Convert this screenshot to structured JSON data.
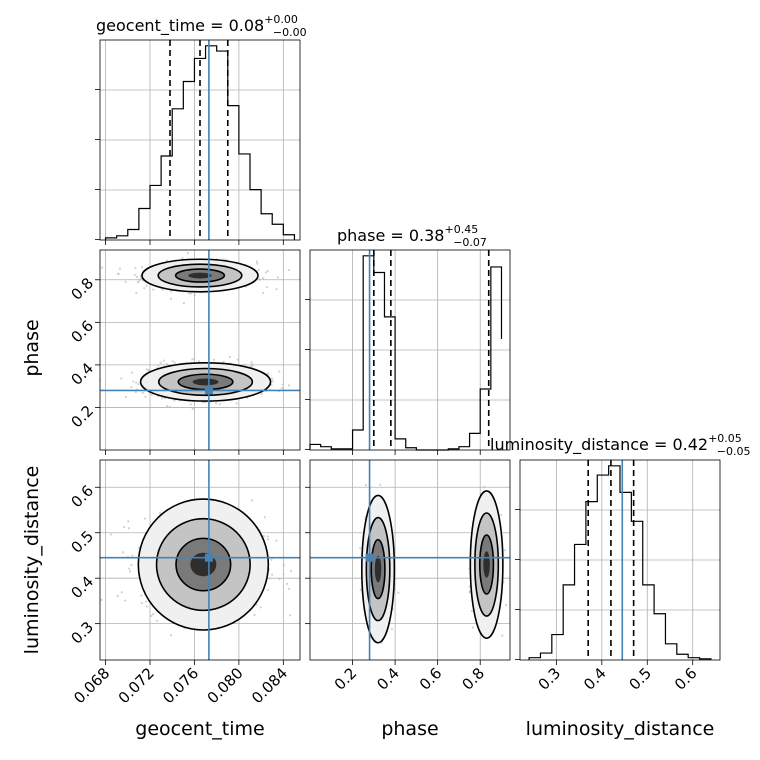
{
  "chart_data": {
    "type": "corner",
    "parameters": [
      "geocent_time",
      "phase",
      "luminosity_distance"
    ],
    "titles": {
      "geocent_time": {
        "name": "geocent_time",
        "median": "0.08",
        "plus": "+0.00",
        "minus": "−0.00"
      },
      "phase": {
        "name": "phase",
        "median": "0.38",
        "plus": "+0.45",
        "minus": "−0.07"
      },
      "luminosity_distance": {
        "name": "luminosity_distance",
        "median": "0.42",
        "plus": "+0.05",
        "minus": "−0.05"
      }
    },
    "axis_labels": {
      "x": [
        "geocent_time",
        "phase",
        "luminosity_distance"
      ],
      "y": [
        "phase",
        "luminosity_distance"
      ]
    },
    "ranges": {
      "geocent_time": [
        0.0675,
        0.0855
      ],
      "phase": [
        0.0,
        0.94
      ],
      "luminosity_distance": [
        0.22,
        0.66
      ]
    },
    "ticks": {
      "geocent_time": [
        "0.068",
        "0.072",
        "0.076",
        "0.080",
        "0.084"
      ],
      "phase": [
        "0.2",
        "0.4",
        "0.6",
        "0.8"
      ],
      "luminosity_distance": [
        "0.3",
        "0.4",
        "0.5",
        "0.6"
      ]
    },
    "truths": {
      "geocent_time": 0.0773,
      "phase": 0.28,
      "luminosity_distance": 0.445
    },
    "quantiles": {
      "geocent_time": [
        0.0738,
        0.0765,
        0.079
      ],
      "phase": [
        0.3,
        0.38,
        0.84
      ],
      "luminosity_distance": [
        0.37,
        0.42,
        0.47
      ]
    },
    "histograms": {
      "geocent_time": {
        "edges": [
          0.068,
          0.069,
          0.07,
          0.071,
          0.072,
          0.073,
          0.074,
          0.075,
          0.076,
          0.077,
          0.078,
          0.079,
          0.08,
          0.081,
          0.082,
          0.083,
          0.084,
          0.085
        ],
        "counts": [
          2,
          4,
          10,
          30,
          52,
          80,
          125,
          151,
          173,
          185,
          180,
          128,
          82,
          48,
          25,
          15,
          5
        ]
      },
      "phase": {
        "edges": [
          0.0,
          0.05,
          0.1,
          0.15,
          0.2,
          0.25,
          0.3,
          0.35,
          0.4,
          0.45,
          0.5,
          0.55,
          0.6,
          0.65,
          0.7,
          0.75,
          0.8,
          0.85,
          0.9
        ],
        "counts": [
          5,
          3,
          1,
          1,
          18,
          175,
          160,
          120,
          10,
          2,
          0,
          0,
          0,
          1,
          3,
          15,
          55,
          165,
          100
        ]
      },
      "luminosity_distance": {
        "edges": [
          0.24,
          0.265,
          0.29,
          0.315,
          0.34,
          0.365,
          0.39,
          0.415,
          0.44,
          0.465,
          0.49,
          0.515,
          0.54,
          0.565,
          0.59,
          0.615,
          0.64
        ],
        "counts": [
          2,
          6,
          22,
          65,
          100,
          137,
          160,
          168,
          145,
          120,
          65,
          40,
          14,
          5,
          2,
          1
        ]
      }
    },
    "clusters": {
      "geocent_time_vs_phase": [
        {
          "cx": 0.0765,
          "cy": 0.82,
          "sx": 0.0022,
          "sy": 0.028,
          "rx": 0.0058,
          "ry": 0.085
        },
        {
          "cx": 0.077,
          "cy": 0.32,
          "sx": 0.0022,
          "sy": 0.035,
          "rx": 0.0065,
          "ry": 0.1
        }
      ],
      "geocent_time_vs_luminosity_distance": [
        {
          "cx": 0.0768,
          "cy": 0.43,
          "sx": 0.0024,
          "sy": 0.045,
          "rx": 0.0065,
          "ry": 0.16
        }
      ],
      "phase_vs_luminosity_distance": [
        {
          "cx": 0.32,
          "cy": 0.42,
          "sx": 0.025,
          "sy": 0.045,
          "rx": 0.085,
          "ry": 0.18
        },
        {
          "cx": 0.83,
          "cy": 0.43,
          "sx": 0.025,
          "sy": 0.045,
          "rx": 0.085,
          "ry": 0.18
        }
      ]
    },
    "colors": {
      "truth": "#4682b4",
      "line": "#000000",
      "grid": "#b0b0b0",
      "points": "#bdbdbd"
    },
    "grid": true
  }
}
